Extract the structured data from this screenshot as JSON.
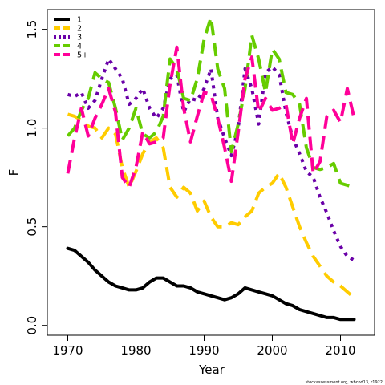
{
  "chart_data": {
    "type": "line",
    "xlabel": "Year",
    "ylabel": "F",
    "xlim": [
      1967,
      2015
    ],
    "ylim": [
      -0.05,
      1.6
    ],
    "xticks": [
      1970,
      1980,
      1990,
      2000,
      2010
    ],
    "yticks": [
      0.0,
      0.5,
      1.0,
      1.5
    ],
    "ytick_labels": [
      "0.0",
      "0.5",
      "1.0",
      "1.5"
    ],
    "grid": false,
    "legend_position": "top-left",
    "x": [
      1970,
      1971,
      1972,
      1973,
      1974,
      1975,
      1976,
      1977,
      1978,
      1979,
      1980,
      1981,
      1982,
      1983,
      1984,
      1985,
      1986,
      1987,
      1988,
      1989,
      1990,
      1991,
      1992,
      1993,
      1994,
      1995,
      1996,
      1997,
      1998,
      1999,
      2000,
      2001,
      2002,
      2003,
      2004,
      2005,
      2006,
      2007,
      2008,
      2009,
      2010,
      2011,
      2012
    ],
    "series": [
      {
        "name": "1",
        "color": "#000000",
        "dash": "solid",
        "values": [
          0.39,
          0.38,
          0.35,
          0.32,
          0.28,
          0.25,
          0.22,
          0.2,
          0.19,
          0.18,
          0.18,
          0.19,
          0.22,
          0.24,
          0.24,
          0.22,
          0.2,
          0.2,
          0.19,
          0.17,
          0.16,
          0.15,
          0.14,
          0.13,
          0.14,
          0.16,
          0.19,
          0.18,
          0.17,
          0.16,
          0.15,
          0.13,
          0.11,
          0.1,
          0.08,
          0.07,
          0.06,
          0.05,
          0.04,
          0.04,
          0.03,
          0.03,
          0.03
        ]
      },
      {
        "name": "2",
        "color": "#FFCC00",
        "dash": "long",
        "values": [
          1.07,
          1.06,
          1.04,
          1.01,
          1.0,
          0.95,
          1.0,
          0.97,
          0.8,
          0.7,
          0.78,
          0.87,
          0.93,
          0.95,
          0.9,
          0.7,
          0.65,
          0.7,
          0.67,
          0.58,
          0.63,
          0.55,
          0.5,
          0.5,
          0.52,
          0.51,
          0.55,
          0.58,
          0.67,
          0.7,
          0.72,
          0.77,
          0.7,
          0.6,
          0.5,
          0.42,
          0.35,
          0.3,
          0.25,
          0.22,
          0.2,
          0.17,
          0.14
        ]
      },
      {
        "name": "3",
        "color": "#6A00A8",
        "dash": "dot",
        "values": [
          1.17,
          1.16,
          1.18,
          1.1,
          1.14,
          1.25,
          1.35,
          1.3,
          1.25,
          1.12,
          1.15,
          1.2,
          1.1,
          1.05,
          1.1,
          1.25,
          1.27,
          1.08,
          1.15,
          1.14,
          1.2,
          1.3,
          1.05,
          0.95,
          0.86,
          1.0,
          1.3,
          1.2,
          1.02,
          1.28,
          1.31,
          1.27,
          1.08,
          0.95,
          0.87,
          0.78,
          0.75,
          0.65,
          0.57,
          0.48,
          0.4,
          0.35,
          0.33
        ]
      },
      {
        "name": "4",
        "color": "#66CC00",
        "dash": "long",
        "values": [
          0.96,
          1.0,
          1.09,
          1.15,
          1.28,
          1.25,
          1.23,
          1.1,
          0.94,
          1.0,
          1.1,
          0.97,
          0.95,
          0.98,
          1.06,
          1.35,
          1.3,
          1.15,
          1.14,
          1.25,
          1.45,
          1.56,
          1.3,
          1.2,
          0.88,
          1.02,
          1.2,
          1.47,
          1.35,
          1.18,
          1.4,
          1.35,
          1.18,
          1.17,
          1.12,
          0.9,
          0.8,
          0.79,
          0.8,
          0.82,
          0.72,
          0.71,
          0.7
        ]
      },
      {
        "name": "5+",
        "color": "#FF0099",
        "dash": "long",
        "values": [
          0.77,
          0.95,
          1.1,
          0.96,
          1.05,
          1.12,
          1.2,
          1.08,
          0.75,
          0.7,
          0.8,
          0.98,
          0.92,
          0.93,
          0.95,
          1.22,
          1.41,
          1.1,
          0.93,
          1.06,
          1.18,
          1.17,
          1.05,
          0.9,
          0.73,
          0.98,
          1.25,
          1.36,
          1.08,
          1.15,
          1.09,
          1.1,
          1.12,
          0.92,
          1.05,
          1.15,
          0.77,
          0.83,
          1.06,
          1.09,
          1.03,
          1.2,
          1.05
        ]
      }
    ],
    "credit": "stockassessment.org, wbcod13, r1922"
  }
}
